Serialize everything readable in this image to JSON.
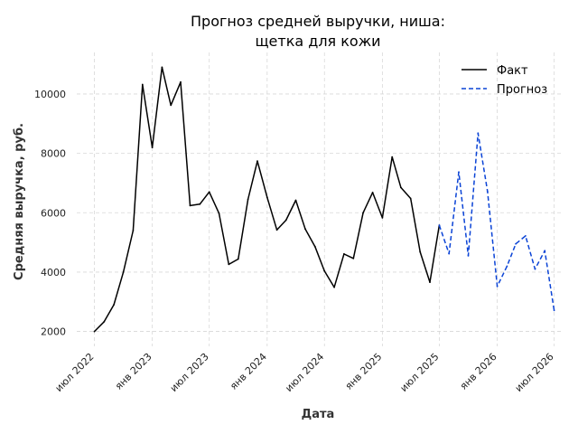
{
  "chart_data": {
    "type": "line",
    "title_line1": "Прогноз средней выручки, ниша:",
    "title_line2": "щетка для кожи",
    "xlabel": "Дата",
    "ylabel": "Средняя выручка, руб.",
    "ylim": [
      1500,
      11400
    ],
    "xlim": [
      "2022-05-06",
      "2026-07-25"
    ],
    "grid": true,
    "legend_placement": "top-right",
    "y_ticks": [
      2000,
      4000,
      6000,
      8000,
      10000
    ],
    "y_tick_labels": [
      "2000",
      "4000",
      "6000",
      "8000",
      "10000"
    ],
    "x_ticks": [
      "2022-07-01",
      "2023-01-01",
      "2023-07-01",
      "2024-01-01",
      "2024-07-01",
      "2025-01-01",
      "2025-07-01",
      "2026-01-01",
      "2026-07-01"
    ],
    "x_tick_labels": [
      "июл 2022",
      "янв 2023",
      "июл 2023",
      "янв 2024",
      "июл 2024",
      "янв 2025",
      "июл 2025",
      "янв 2026",
      "июл 2026"
    ],
    "series": [
      {
        "name": "Факт",
        "color": "#000000",
        "style": "solid",
        "points": [
          [
            "2022-07-01",
            2000
          ],
          [
            "2022-08-01",
            2330
          ],
          [
            "2022-09-01",
            2900
          ],
          [
            "2022-10-01",
            4000
          ],
          [
            "2022-11-01",
            5400
          ],
          [
            "2022-12-01",
            10320
          ],
          [
            "2023-01-01",
            8200
          ],
          [
            "2023-02-01",
            10900
          ],
          [
            "2023-03-01",
            9620
          ],
          [
            "2023-04-01",
            10400
          ],
          [
            "2023-05-01",
            6240
          ],
          [
            "2023-06-01",
            6290
          ],
          [
            "2023-07-01",
            6700
          ],
          [
            "2023-08-01",
            5980
          ],
          [
            "2023-09-01",
            4260
          ],
          [
            "2023-10-01",
            4440
          ],
          [
            "2023-11-01",
            6450
          ],
          [
            "2023-12-01",
            7740
          ],
          [
            "2024-01-01",
            6520
          ],
          [
            "2024-02-01",
            5420
          ],
          [
            "2024-03-01",
            5750
          ],
          [
            "2024-04-01",
            6420
          ],
          [
            "2024-05-01",
            5450
          ],
          [
            "2024-06-01",
            4860
          ],
          [
            "2024-07-01",
            4040
          ],
          [
            "2024-08-01",
            3490
          ],
          [
            "2024-09-01",
            4610
          ],
          [
            "2024-10-01",
            4460
          ],
          [
            "2024-11-01",
            6000
          ],
          [
            "2024-12-01",
            6680
          ],
          [
            "2025-01-01",
            5830
          ],
          [
            "2025-02-01",
            7880
          ],
          [
            "2025-03-01",
            6850
          ],
          [
            "2025-04-01",
            6480
          ],
          [
            "2025-05-01",
            4680
          ],
          [
            "2025-06-01",
            3660
          ],
          [
            "2025-07-01",
            5580
          ]
        ]
      },
      {
        "name": "Прогноз",
        "color": "#0a43d6",
        "style": "dashed",
        "points": [
          [
            "2025-07-01",
            5580
          ],
          [
            "2025-08-01",
            4620
          ],
          [
            "2025-09-01",
            7370
          ],
          [
            "2025-10-01",
            4550
          ],
          [
            "2025-11-01",
            8680
          ],
          [
            "2025-12-01",
            6720
          ],
          [
            "2026-01-01",
            3520
          ],
          [
            "2026-02-01",
            4200
          ],
          [
            "2026-03-01",
            4950
          ],
          [
            "2026-04-01",
            5220
          ],
          [
            "2026-05-01",
            4100
          ],
          [
            "2026-06-01",
            4720
          ],
          [
            "2026-07-01",
            2710
          ]
        ]
      }
    ]
  }
}
